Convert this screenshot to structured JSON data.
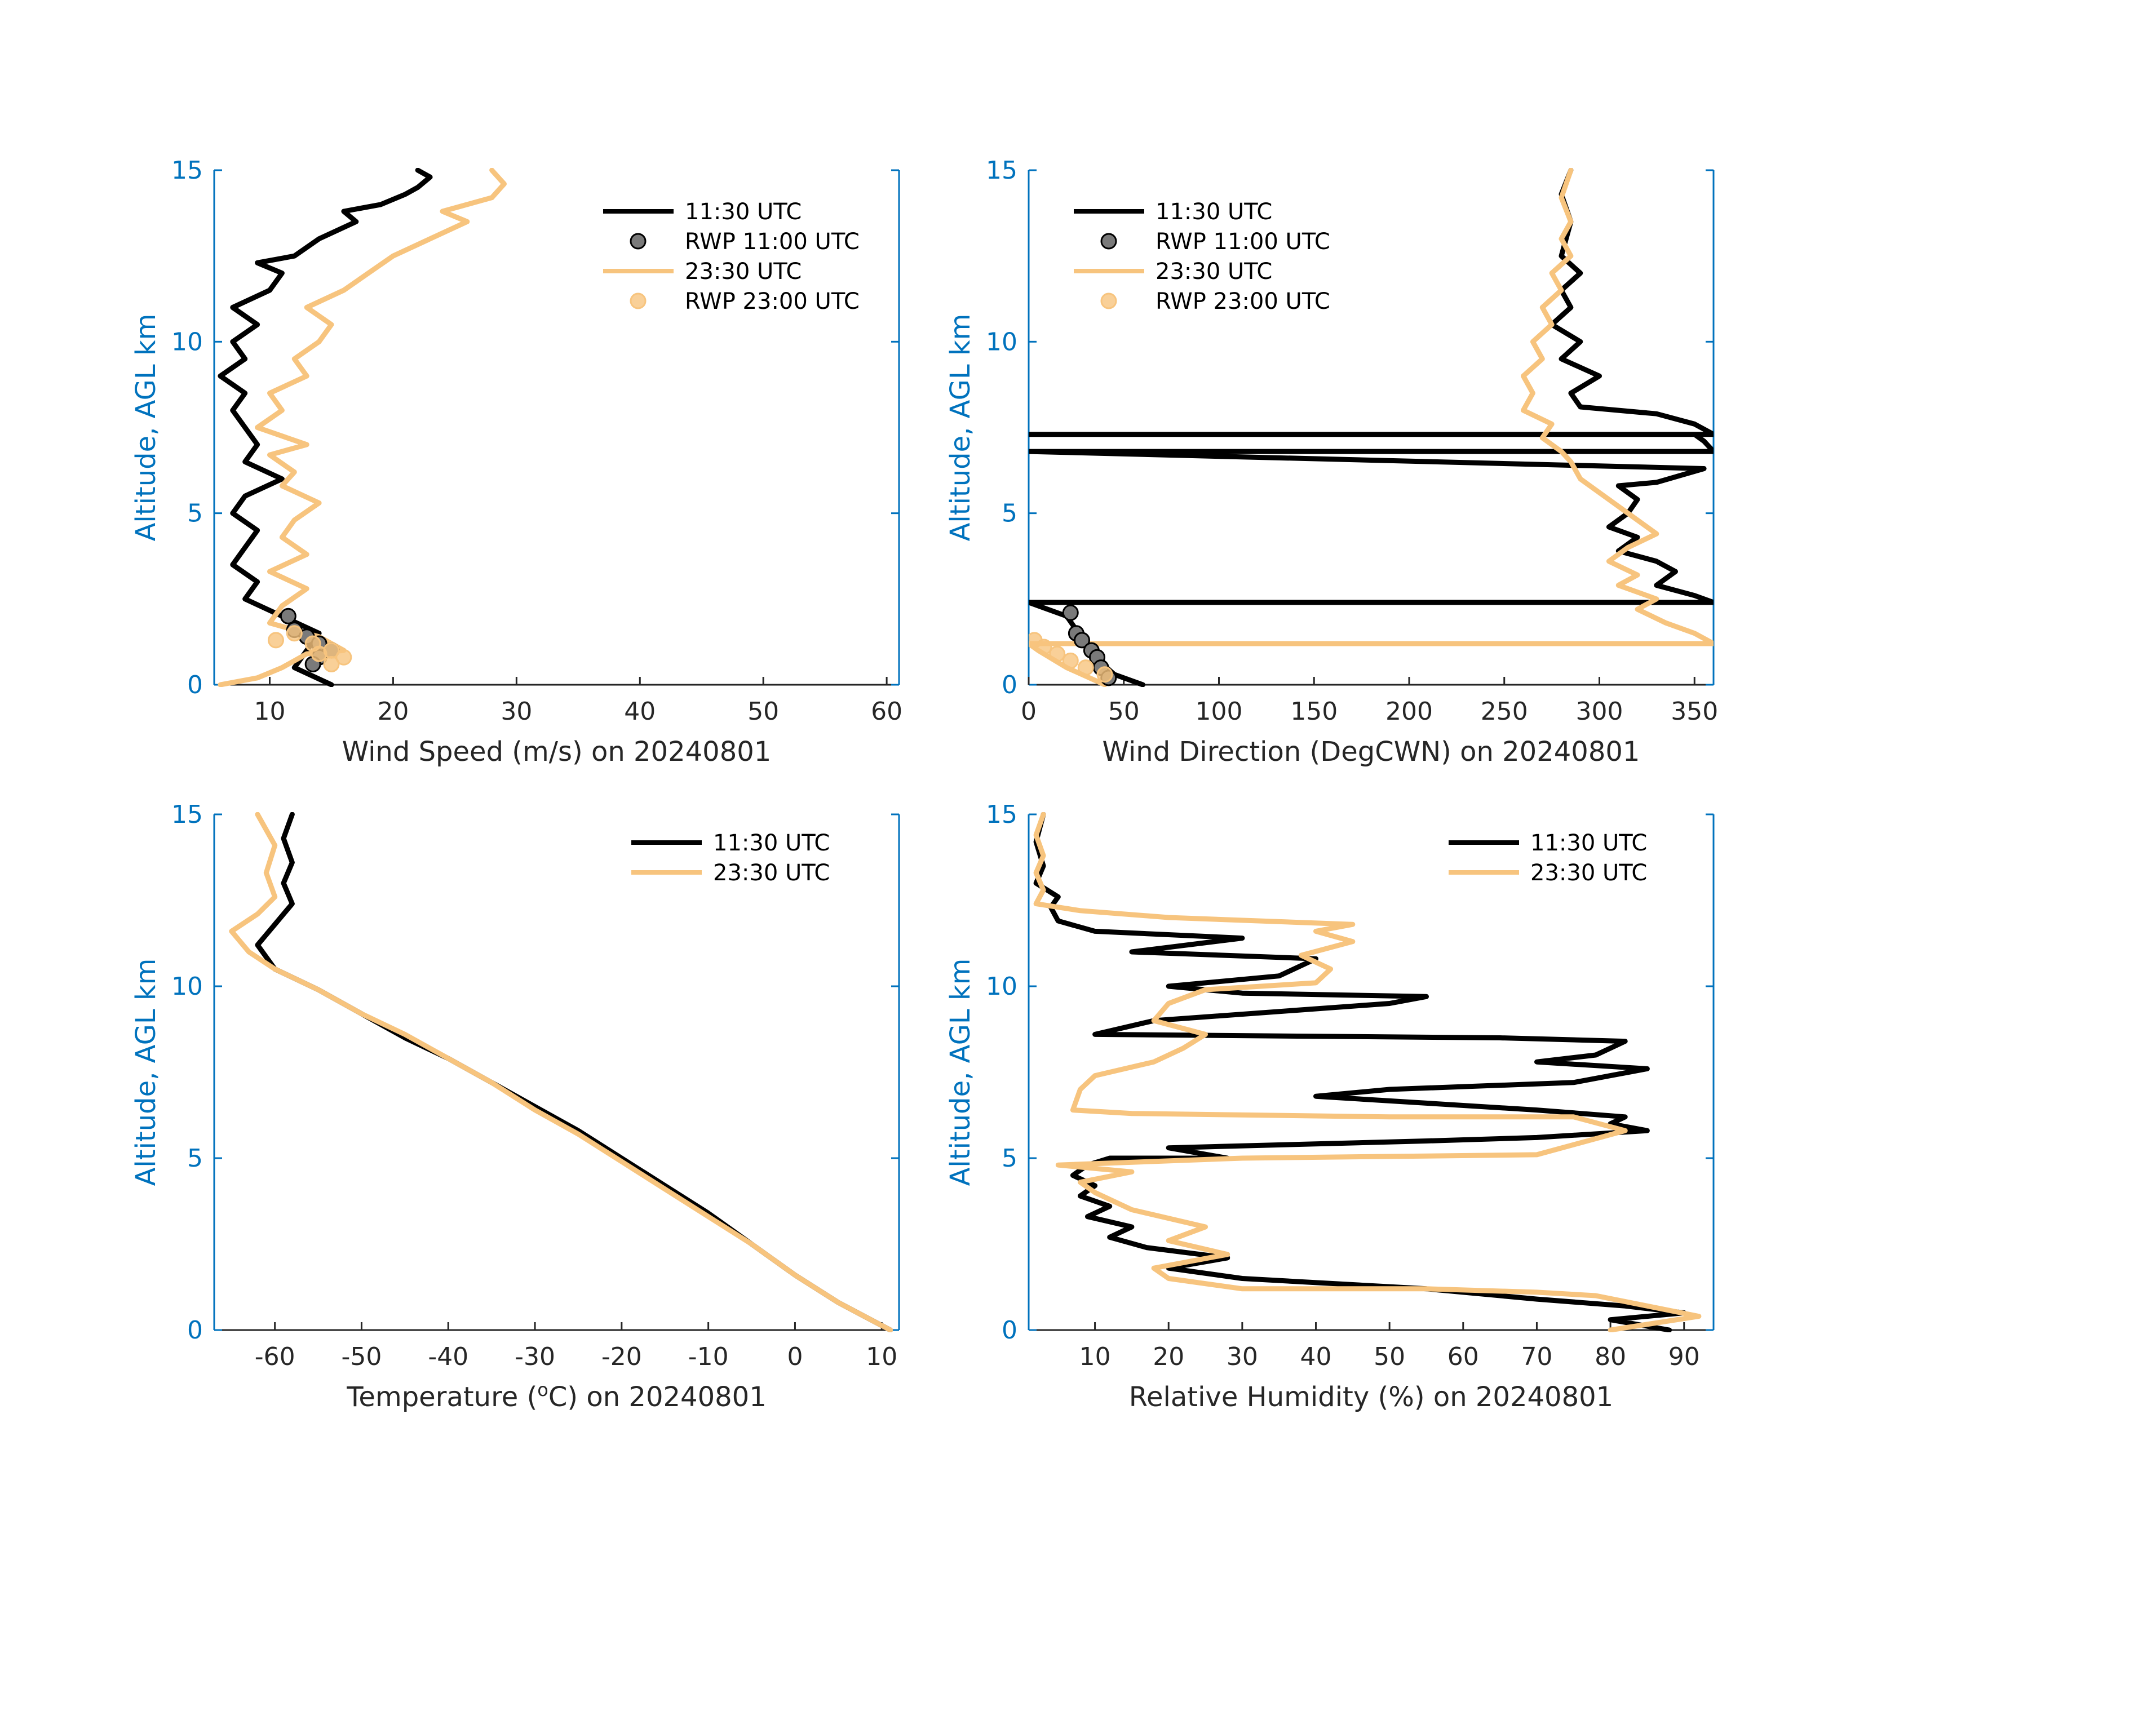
{
  "figure": {
    "background": "#ffffff"
  },
  "colors": {
    "black": "#000000",
    "orange": "#f7c47e",
    "axis_blue": "#0072bd",
    "tick_text": "#262626"
  },
  "legend_labels": {
    "line_1130": "11:30 UTC",
    "rwp_1100": "RWP 11:00 UTC",
    "line_2330": "23:30 UTC",
    "rwp_2300": "RWP 23:00 UTC"
  },
  "chart_data": [
    {
      "id": "wind-speed",
      "type": "line",
      "xlabel": "Wind Speed (m/s) on 20240801",
      "ylabel": "Altitude, AGL km",
      "xlim": [
        5.5,
        61
      ],
      "ylim": [
        0,
        15
      ],
      "xticks": [
        10,
        20,
        30,
        40,
        50,
        60
      ],
      "yticks": [
        0,
        5,
        10,
        15
      ],
      "legend": "top-right",
      "legend_entries": [
        "line_1130",
        "rwp_1100",
        "line_2330",
        "rwp_2300"
      ],
      "series": [
        {
          "name": "11:30 UTC",
          "color": "#000000",
          "x": [
            15,
            12,
            13,
            14,
            11,
            8,
            9,
            7,
            8,
            9,
            7,
            8,
            11,
            8,
            9,
            8,
            7,
            8,
            6,
            8,
            7,
            9,
            7,
            10,
            11,
            9,
            12,
            14,
            17,
            16,
            19,
            21,
            22,
            23,
            22
          ],
          "y": [
            0,
            0.5,
            1,
            1.5,
            2,
            2.5,
            3,
            3.5,
            4,
            4.5,
            5,
            5.5,
            6,
            6.5,
            7,
            7.5,
            8,
            8.5,
            9,
            9.5,
            10,
            10.5,
            11,
            11.5,
            12,
            12.3,
            12.5,
            13,
            13.5,
            13.8,
            14,
            14.3,
            14.5,
            14.8,
            15
          ]
        },
        {
          "name": "RWP 11:00 UTC",
          "color": "#000000",
          "marker": "circle",
          "x": [
            11.5,
            12,
            13,
            14,
            15,
            14,
            13.5
          ],
          "y": [
            2.0,
            1.6,
            1.4,
            1.2,
            1.0,
            0.8,
            0.6
          ]
        },
        {
          "name": "23:30 UTC",
          "color": "#f7c47e",
          "x": [
            6,
            9,
            11,
            13,
            16,
            14,
            10,
            11,
            13,
            10,
            13,
            11,
            12,
            14,
            11,
            12,
            10,
            13,
            9,
            11,
            10,
            13,
            12,
            14,
            15,
            13,
            16,
            18,
            20,
            23,
            26,
            24,
            28,
            29,
            28
          ],
          "y": [
            0,
            0.2,
            0.5,
            0.9,
            1.0,
            1.4,
            1.8,
            2.3,
            2.8,
            3.3,
            3.8,
            4.3,
            4.8,
            5.3,
            5.8,
            6.2,
            6.7,
            7.0,
            7.5,
            8.0,
            8.5,
            9.0,
            9.5,
            10.0,
            10.5,
            11.0,
            11.5,
            12.0,
            12.5,
            13.0,
            13.5,
            13.8,
            14.2,
            14.6,
            15
          ]
        },
        {
          "name": "RWP 23:00 UTC",
          "color": "#f7c47e",
          "marker": "circle",
          "x": [
            10.5,
            12,
            13.5,
            15,
            16,
            15,
            14
          ],
          "y": [
            1.3,
            1.5,
            1.2,
            1.0,
            0.8,
            0.6,
            0.9
          ]
        }
      ]
    },
    {
      "id": "wind-direction",
      "type": "line",
      "xlabel": "Wind Direction (DegCWN) on 20240801",
      "ylabel": "Altitude, AGL km",
      "xlim": [
        0,
        360
      ],
      "ylim": [
        0,
        15
      ],
      "xticks": [
        0,
        50,
        100,
        150,
        200,
        250,
        300,
        350
      ],
      "yticks": [
        0,
        5,
        10,
        15
      ],
      "legend": "top-left",
      "legend_entries": [
        "line_1130",
        "rwp_1100",
        "line_2330",
        "rwp_2300"
      ],
      "series": [
        {
          "name": "11:30 UTC",
          "color": "#000000",
          "x": [
            60,
            45,
            35,
            30,
            25,
            20,
            0,
            360,
            350,
            330,
            340,
            330,
            310,
            320,
            305,
            315,
            320,
            310,
            330,
            355,
            0,
            0,
            360,
            355,
            350,
            360,
            3,
            0,
            360,
            350,
            330,
            290,
            285,
            300,
            280,
            290,
            275,
            285,
            280,
            290,
            280,
            285,
            280,
            285
          ],
          "y": [
            0,
            0.3,
            0.8,
            1.2,
            1.6,
            2.0,
            2.4,
            2.4,
            2.6,
            2.9,
            3.3,
            3.6,
            3.9,
            4.3,
            4.6,
            5.0,
            5.4,
            5.8,
            5.9,
            6.3,
            6.8,
            6.8,
            6.8,
            7.1,
            7.3,
            7.3,
            7.3,
            7.3,
            7.3,
            7.6,
            7.9,
            8.1,
            8.5,
            9.0,
            9.5,
            10.0,
            10.5,
            11.0,
            11.5,
            12.0,
            12.5,
            13.5,
            14.3,
            15
          ]
        },
        {
          "name": "RWP 11:00 UTC",
          "color": "#000000",
          "marker": "circle",
          "x": [
            22,
            25,
            28,
            33,
            36,
            38,
            42
          ],
          "y": [
            2.1,
            1.5,
            1.3,
            1.0,
            0.8,
            0.5,
            0.2
          ]
        },
        {
          "name": "23:30 UTC",
          "color": "#f7c47e",
          "x": [
            40,
            20,
            5,
            0,
            360,
            350,
            335,
            320,
            330,
            310,
            320,
            305,
            315,
            330,
            320,
            310,
            300,
            290,
            285,
            280,
            270,
            275,
            260,
            265,
            260,
            270,
            265,
            275,
            270,
            280,
            275,
            285,
            280,
            285,
            280,
            285
          ],
          "y": [
            0,
            0.5,
            1.0,
            1.2,
            1.2,
            1.5,
            1.8,
            2.2,
            2.5,
            2.9,
            3.2,
            3.6,
            4.0,
            4.4,
            4.8,
            5.2,
            5.6,
            6.0,
            6.5,
            6.8,
            7.2,
            7.6,
            8.0,
            8.5,
            9.0,
            9.5,
            10.0,
            10.5,
            11.0,
            11.5,
            12.0,
            12.5,
            13.0,
            13.5,
            14.2,
            15
          ]
        },
        {
          "name": "RWP 23:00 UTC",
          "color": "#f7c47e",
          "marker": "circle",
          "x": [
            3,
            8,
            15,
            22,
            30,
            40
          ],
          "y": [
            1.3,
            1.1,
            0.9,
            0.7,
            0.5,
            0.3
          ]
        }
      ]
    },
    {
      "id": "temperature",
      "type": "line",
      "xlabel_parts": [
        "Temperature (",
        "o",
        "C) on 20240801"
      ],
      "ylabel": "Altitude, AGL km",
      "xlim": [
        -67,
        12
      ],
      "ylim": [
        0,
        15
      ],
      "xticks": [
        -60,
        -50,
        -40,
        -30,
        -20,
        -10,
        0,
        10
      ],
      "yticks": [
        0,
        5,
        10,
        15
      ],
      "legend": "top-right",
      "legend_entries": [
        "line_1130",
        "line_2330"
      ],
      "series": [
        {
          "name": "11:30 UTC",
          "color": "#000000",
          "x": [
            11,
            5,
            0,
            -5,
            -10,
            -15,
            -20,
            -25,
            -30,
            -35,
            -40,
            -45,
            -50,
            -55,
            -60,
            -62,
            -60,
            -58,
            -59,
            -58,
            -59,
            -58
          ],
          "y": [
            0,
            0.8,
            1.6,
            2.5,
            3.4,
            4.2,
            5.0,
            5.8,
            6.5,
            7.2,
            7.9,
            8.5,
            9.2,
            9.9,
            10.5,
            11.2,
            11.8,
            12.4,
            13.0,
            13.6,
            14.3,
            15
          ]
        },
        {
          "name": "23:30 UTC",
          "color": "#f7c47e",
          "x": [
            11,
            5,
            0,
            -5,
            -10,
            -15,
            -20,
            -25,
            -30,
            -35,
            -40,
            -45,
            -50,
            -55,
            -60,
            -63,
            -65,
            -62,
            -60,
            -61,
            -60,
            -62
          ],
          "y": [
            0,
            0.8,
            1.6,
            2.5,
            3.3,
            4.1,
            4.9,
            5.7,
            6.4,
            7.2,
            7.9,
            8.6,
            9.2,
            9.9,
            10.5,
            11.0,
            11.6,
            12.1,
            12.6,
            13.3,
            14.1,
            15
          ]
        }
      ]
    },
    {
      "id": "relative-humidity",
      "type": "line",
      "xlabel": "Relative Humidity (%) on 20240801",
      "ylabel": "Altitude, AGL km",
      "xlim": [
        1,
        94
      ],
      "ylim": [
        0,
        15
      ],
      "xticks": [
        10,
        20,
        30,
        40,
        50,
        60,
        70,
        80,
        90
      ],
      "yticks": [
        0,
        5,
        10,
        15
      ],
      "legend": "top-right",
      "legend_entries": [
        "line_1130",
        "line_2330"
      ],
      "series": [
        {
          "name": "11:30 UTC",
          "color": "#000000",
          "x": [
            88,
            80,
            90,
            82,
            70,
            55,
            30,
            20,
            28,
            17,
            12,
            15,
            9,
            12,
            8,
            10,
            7,
            9,
            12,
            28,
            20,
            55,
            70,
            85,
            80,
            82,
            70,
            55,
            40,
            50,
            75,
            80,
            85,
            70,
            78,
            80,
            82,
            65,
            10,
            18,
            50,
            55,
            30,
            20,
            35,
            40,
            15,
            30,
            10,
            5,
            4,
            5,
            2,
            3,
            2,
            3
          ],
          "y": [
            0,
            0.3,
            0.5,
            0.7,
            0.9,
            1.2,
            1.5,
            1.8,
            2.1,
            2.4,
            2.7,
            3.0,
            3.3,
            3.6,
            3.9,
            4.2,
            4.5,
            4.8,
            5.0,
            5.0,
            5.3,
            5.5,
            5.6,
            5.8,
            6.0,
            6.2,
            6.4,
            6.6,
            6.8,
            7.0,
            7.2,
            7.4,
            7.6,
            7.8,
            8.0,
            8.2,
            8.4,
            8.5,
            8.6,
            9.0,
            9.5,
            9.7,
            9.8,
            10.0,
            10.3,
            10.8,
            11.0,
            11.4,
            11.6,
            11.9,
            12.3,
            12.6,
            13.0,
            13.5,
            14.2,
            15
          ]
        },
        {
          "name": "23:30 UTC",
          "color": "#f7c47e",
          "x": [
            80,
            92,
            85,
            78,
            70,
            55,
            30,
            20,
            18,
            28,
            20,
            25,
            15,
            10,
            8,
            15,
            5,
            30,
            70,
            82,
            75,
            50,
            15,
            7,
            8,
            10,
            18,
            22,
            25,
            18,
            20,
            25,
            40,
            42,
            38,
            45,
            40,
            45,
            20,
            8,
            2,
            3,
            2,
            3,
            2,
            3
          ],
          "y": [
            0,
            0.4,
            0.7,
            1.0,
            1.1,
            1.2,
            1.2,
            1.5,
            1.8,
            2.2,
            2.6,
            3.0,
            3.5,
            4.0,
            4.3,
            4.6,
            4.8,
            5.0,
            5.1,
            5.8,
            6.2,
            6.2,
            6.3,
            6.4,
            7.0,
            7.4,
            7.8,
            8.2,
            8.6,
            9.0,
            9.5,
            9.9,
            10.1,
            10.5,
            10.9,
            11.3,
            11.6,
            11.8,
            12.0,
            12.2,
            12.4,
            12.8,
            13.3,
            13.8,
            14.4,
            15
          ]
        }
      ]
    }
  ]
}
